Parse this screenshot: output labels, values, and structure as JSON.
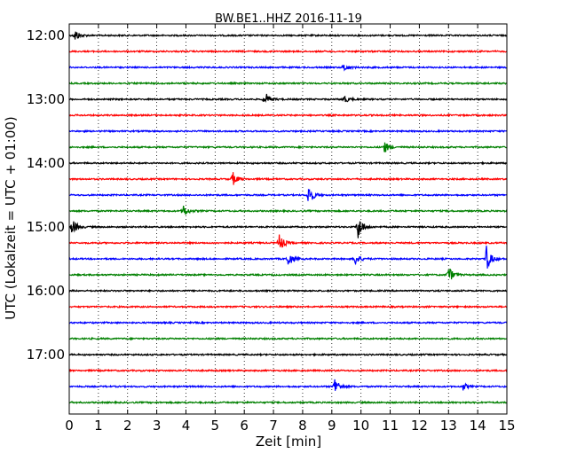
{
  "chart_data": {
    "type": "line",
    "title": "BW.BE1..HHZ 2016-11-19",
    "xlabel": "Zeit  [min]",
    "ylabel": "UTC (Lokalzeit = UTC + 01:00)",
    "xlim": [
      0,
      15
    ],
    "x_ticks": [
      "0",
      "1",
      "2",
      "3",
      "4",
      "5",
      "6",
      "7",
      "8",
      "9",
      "10",
      "11",
      "12",
      "13",
      "14",
      "15"
    ],
    "y_ticks": [
      "12:00",
      "13:00",
      "14:00",
      "15:00",
      "16:00",
      "17:00"
    ],
    "y_tick_rows": [
      0,
      4,
      8,
      12,
      16,
      20
    ],
    "grid": "vertical dotted",
    "row_minutes": 15,
    "trace_colors": [
      "#000000",
      "#ff0000",
      "#0000ff",
      "#008000"
    ],
    "traces": [
      {
        "start": "12:00",
        "events": [
          {
            "t": 0.2,
            "amp": 7
          }
        ]
      },
      {
        "start": "12:15",
        "events": []
      },
      {
        "start": "12:30",
        "events": [
          {
            "t": 9.4,
            "amp": 5
          }
        ]
      },
      {
        "start": "12:45",
        "events": []
      },
      {
        "start": "13:00",
        "events": [
          {
            "t": 6.7,
            "amp": 9
          },
          {
            "t": 9.4,
            "amp": 5
          }
        ]
      },
      {
        "start": "13:15",
        "events": []
      },
      {
        "start": "13:30",
        "events": []
      },
      {
        "start": "13:45",
        "events": [
          {
            "t": 10.8,
            "amp": 7
          }
        ]
      },
      {
        "start": "14:00",
        "events": []
      },
      {
        "start": "14:15",
        "events": [
          {
            "t": 5.6,
            "amp": 8
          }
        ]
      },
      {
        "start": "14:30",
        "events": [
          {
            "t": 8.2,
            "amp": 13
          }
        ]
      },
      {
        "start": "14:45",
        "events": [
          {
            "t": 3.9,
            "amp": 8
          }
        ]
      },
      {
        "start": "15:00",
        "events": [
          {
            "t": 0.1,
            "amp": 10
          },
          {
            "t": 9.9,
            "amp": 15
          }
        ]
      },
      {
        "start": "15:15",
        "events": [
          {
            "t": 7.2,
            "amp": 11
          }
        ]
      },
      {
        "start": "15:30",
        "events": [
          {
            "t": 7.5,
            "amp": 9
          },
          {
            "t": 9.8,
            "amp": 8
          },
          {
            "t": 14.3,
            "amp": 15
          }
        ]
      },
      {
        "start": "15:45",
        "events": [
          {
            "t": 13.0,
            "amp": 10
          }
        ]
      },
      {
        "start": "16:00",
        "events": []
      },
      {
        "start": "16:15",
        "events": []
      },
      {
        "start": "16:30",
        "events": []
      },
      {
        "start": "16:45",
        "events": []
      },
      {
        "start": "17:00",
        "events": []
      },
      {
        "start": "17:15",
        "events": []
      },
      {
        "start": "17:30",
        "events": [
          {
            "t": 9.1,
            "amp": 11
          },
          {
            "t": 13.5,
            "amp": 4
          }
        ]
      },
      {
        "start": "17:45",
        "events": []
      }
    ]
  }
}
